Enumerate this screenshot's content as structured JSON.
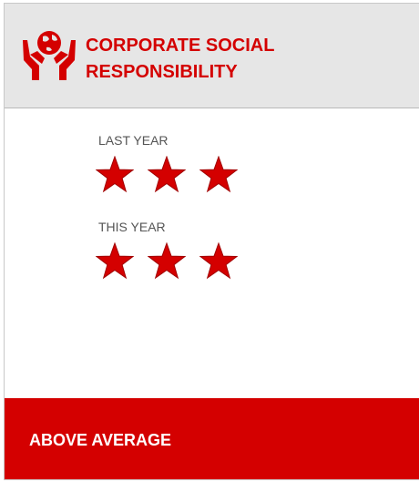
{
  "header": {
    "title": "CORPORATE SOCIAL RESPONSIBILITY"
  },
  "ratings": [
    {
      "label": "LAST YEAR",
      "stars": 3
    },
    {
      "label": "THIS YEAR",
      "stars": 3
    }
  ],
  "footer": {
    "text": "ABOVE AVERAGE"
  }
}
